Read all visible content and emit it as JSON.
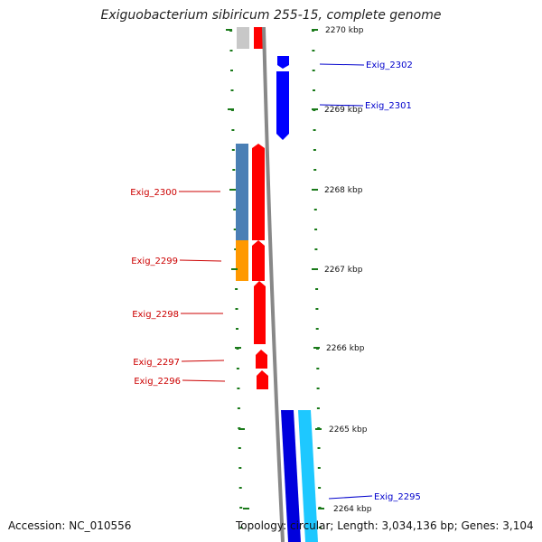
{
  "title": "Exiguobacterium sibiricum 255-15, complete genome",
  "accession": "Accession: NC_010556",
  "summary": "Topology: circular; Length: 3,034,136 bp; Genes: 3,104",
  "colors": {
    "backbone": "#888888",
    "tick": "#1a7a1a",
    "forward_gene": "#ff0000",
    "reverse_gene": "#0000ff",
    "forward_label": "#cc0000",
    "reverse_label": "#0000cc",
    "light_blue": "#1ec8ff",
    "steel_blue": "#4a7fb5",
    "orange": "#ff9900",
    "grey": "#c8c8c8"
  },
  "scale_labels": [
    {
      "text": "2270 kbp",
      "kbp": 2270
    },
    {
      "text": "2269 kbp",
      "kbp": 2269
    },
    {
      "text": "2268 kbp",
      "kbp": 2268
    },
    {
      "text": "2267 kbp",
      "kbp": 2267
    },
    {
      "text": "2266 kbp",
      "kbp": 2266
    },
    {
      "text": "2265 kbp",
      "kbp": 2265
    },
    {
      "text": "2264 kbp",
      "kbp": 2264
    }
  ],
  "genes": [
    {
      "name": "Exig_2302",
      "strand": "reverse"
    },
    {
      "name": "Exig_2301",
      "strand": "reverse"
    },
    {
      "name": "Exig_2300",
      "strand": "forward"
    },
    {
      "name": "Exig_2299",
      "strand": "forward"
    },
    {
      "name": "Exig_2298",
      "strand": "forward"
    },
    {
      "name": "Exig_2297",
      "strand": "forward"
    },
    {
      "name": "Exig_2296",
      "strand": "forward"
    },
    {
      "name": "Exig_2295",
      "strand": "reverse"
    }
  ]
}
